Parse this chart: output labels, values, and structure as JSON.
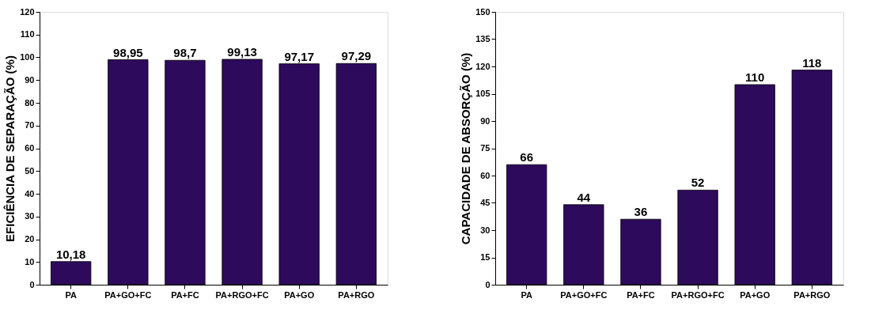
{
  "chart_data": [
    {
      "type": "bar",
      "ylabel": "EFICIÊNCIA DE SEPARAÇÃO (%)",
      "categories": [
        "PA",
        "PA+GO+FC",
        "PA+FC",
        "PA+RGO+FC",
        "PA+GO",
        "PA+RGO"
      ],
      "values": [
        10.18,
        98.95,
        98.7,
        99.13,
        97.17,
        97.29
      ],
      "value_labels": [
        "10,18",
        "98,95",
        "98,7",
        "99,13",
        "97,17",
        "97,29"
      ],
      "color": "#2d0a5c",
      "ylim": [
        0,
        120
      ],
      "yticks": [
        0,
        10,
        20,
        30,
        40,
        50,
        60,
        70,
        80,
        90,
        100,
        110,
        120
      ],
      "grid": false
    },
    {
      "type": "bar",
      "ylabel": "CAPACIDADE DE ABSORÇÃO (%)",
      "categories": [
        "PA",
        "PA+GO+FC",
        "PA+FC",
        "PA+RGO+FC",
        "PA+GO",
        "PA+RGO"
      ],
      "values": [
        66,
        44,
        36,
        52,
        110,
        118
      ],
      "value_labels": [
        "66",
        "44",
        "36",
        "52",
        "110",
        "118"
      ],
      "color": "#2d0a5c",
      "ylim": [
        0,
        150
      ],
      "yticks": [
        0,
        15,
        30,
        45,
        60,
        75,
        90,
        105,
        120,
        135,
        150
      ],
      "grid": false
    }
  ]
}
